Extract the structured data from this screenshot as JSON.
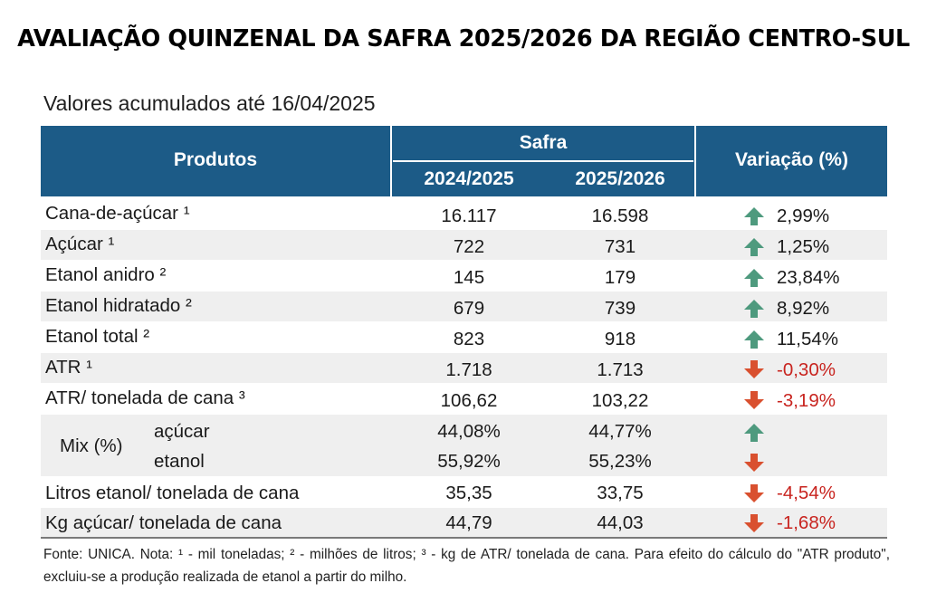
{
  "title": "AVALIAÇÃO QUINZENAL DA SAFRA 2025/2026 DA REGIÃO CENTRO-SUL",
  "subtitle": "Valores acumulados até 16/04/2025",
  "header": {
    "produtos": "Produtos",
    "safra": "Safra",
    "col_prev": "2024/2025",
    "col_curr": "2025/2026",
    "variacao": "Variação (%)"
  },
  "colors": {
    "header_bg": "#1c5b87",
    "arrow_up": "#4e9a7e",
    "arrow_down": "#d9502f",
    "negative_text": "#c8241f"
  },
  "rows": [
    {
      "label": "Cana-de-açúcar ¹",
      "prev": "16.117",
      "curr": "16.598",
      "var": "2,99%",
      "dir": "up"
    },
    {
      "label": "Açúcar ¹",
      "prev": "722",
      "curr": "731",
      "var": "1,25%",
      "dir": "up"
    },
    {
      "label": "Etanol anidro ²",
      "prev": "145",
      "curr": "179",
      "var": "23,84%",
      "dir": "up"
    },
    {
      "label": "Etanol hidratado ²",
      "prev": "679",
      "curr": "739",
      "var": "8,92%",
      "dir": "up"
    },
    {
      "label": "Etanol total ²",
      "prev": "823",
      "curr": "918",
      "var": "11,54%",
      "dir": "up"
    },
    {
      "label": "ATR ¹",
      "prev": "1.718",
      "curr": "1.713",
      "var": "-0,30%",
      "dir": "down"
    },
    {
      "label": "ATR/ tonelada de cana ³",
      "prev": "106,62",
      "curr": "103,22",
      "var": "-3,19%",
      "dir": "down"
    }
  ],
  "mix": {
    "label": "Mix (%)",
    "acucar": {
      "label": "açúcar",
      "prev": "44,08%",
      "curr": "44,77%",
      "dir": "up"
    },
    "etanol": {
      "label": "etanol",
      "prev": "55,92%",
      "curr": "55,23%",
      "dir": "down"
    }
  },
  "rows_after": [
    {
      "label": "Litros etanol/ tonelada de cana",
      "prev": "35,35",
      "curr": "33,75",
      "var": "-4,54%",
      "dir": "down"
    },
    {
      "label": "Kg açúcar/ tonelada de cana",
      "prev": "44,79",
      "curr": "44,03",
      "var": "-1,68%",
      "dir": "down"
    }
  ],
  "footnote": "Fonte: UNICA. Nota: ¹ - mil toneladas; ² - milhões de litros; ³ - kg de ATR/ tonelada de cana. Para efeito do cálculo do \"ATR produto\", excluiu-se a produção realizada de etanol a partir do milho."
}
